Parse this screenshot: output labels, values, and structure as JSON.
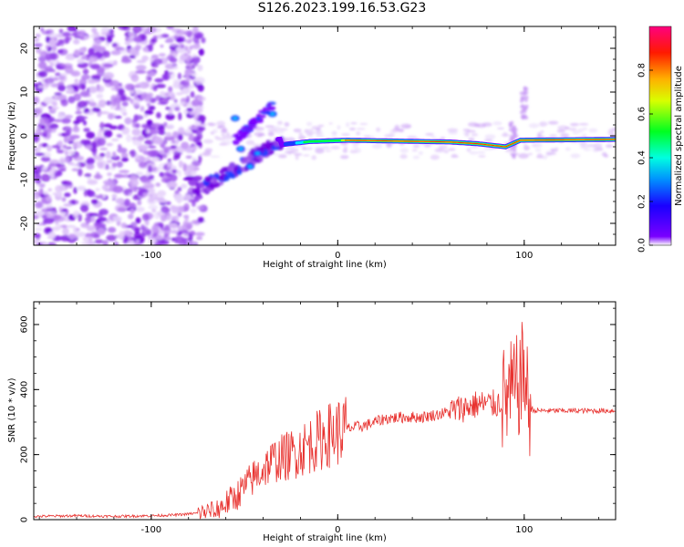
{
  "title": "S126.2023.199.16.53.G23",
  "chart_data": [
    {
      "type": "heatmap",
      "xlabel": "Height of straight line (km)",
      "ylabel": "Frequency (Hz)",
      "xlim": [
        -163,
        149
      ],
      "ylim": [
        -25,
        25
      ],
      "xticks": [
        -100,
        0,
        100
      ],
      "yticks": [
        -20,
        -10,
        0,
        10,
        20
      ],
      "colorbar": {
        "label": "Normalized spectral amplitude",
        "range": [
          0,
          1
        ],
        "ticks": [
          "0.0",
          "0.2",
          "0.4",
          "0.6",
          "0.8"
        ],
        "colormap": "gist_rainbow reversed (violet → blue → cyan → green → yellow → orange → red → pink)"
      },
      "ridge": [
        {
          "x": -30,
          "y": -2
        },
        {
          "x": -15,
          "y": -1.3
        },
        {
          "x": 5,
          "y": -1
        },
        {
          "x": 60,
          "y": -1.4
        },
        {
          "x": 75,
          "y": -1.8
        },
        {
          "x": 90,
          "y": -2.5
        },
        {
          "x": 98,
          "y": -1
        },
        {
          "x": 149,
          "y": -0.8
        }
      ]
    },
    {
      "type": "line",
      "xlabel": "Height of straight line (km)",
      "ylabel": "SNR (10 * v/v)",
      "xlim": [
        -163,
        149
      ],
      "ylim": [
        0,
        670
      ],
      "xticks": [
        -100,
        0,
        100
      ],
      "yticks": [
        0,
        200,
        400,
        600
      ],
      "color": "#e8322f",
      "series": [
        {
          "x": [
            -163,
            -140,
            -120,
            -100,
            -85,
            -75,
            -65,
            -55,
            -45,
            -35,
            -25,
            -15,
            -5,
            5,
            15,
            25,
            35,
            45,
            55,
            65,
            75,
            85,
            92,
            96,
            100,
            102,
            105,
            115,
            130,
            149
          ],
          "y": [
            10,
            12,
            10,
            12,
            15,
            20,
            30,
            70,
            130,
            180,
            200,
            230,
            260,
            280,
            290,
            310,
            315,
            315,
            325,
            340,
            355,
            355,
            380,
            400,
            460,
            360,
            335,
            335,
            335,
            335
          ]
        }
      ]
    }
  ]
}
